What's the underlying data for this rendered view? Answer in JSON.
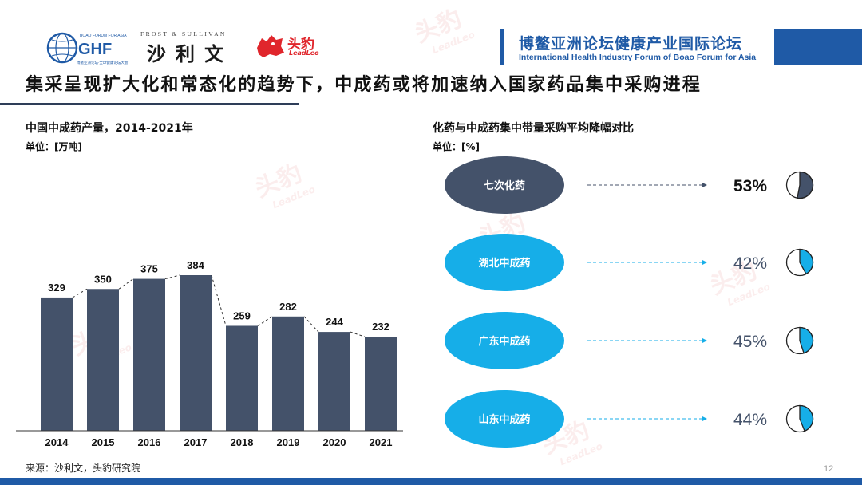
{
  "header": {
    "ghf_logo": {
      "top_text": "BOAO FORUM FOR ASIA",
      "mark_text": "GHF",
      "sub_text": "博鳌亚洲论坛·全球健康论坛大会"
    },
    "frost_logo": {
      "top_text": "FROST & SULLIVAN",
      "cn_text": "沙利文"
    },
    "leadleo_logo": {
      "cn_text": "头豹",
      "en_text": "LeadLeo"
    },
    "forum_title_cn": "博鳌亚洲论坛健康产业国际论坛",
    "forum_title_en": "International Health Industry Forum of Boao Forum for Asia"
  },
  "page_title": "集采呈现扩大化和常态化的趋势下，中成药或将加速纳入国家药品集中采购进程",
  "left_chart": {
    "title": "中国中成药产量，2014-2021年",
    "unit": "单位：[万吨]"
  },
  "right_chart": {
    "title": "化药与中成药集中带量采购平均降幅对比",
    "unit": "单位：[%]"
  },
  "chart_data": [
    {
      "type": "bar",
      "title": "中国中成药产量，2014-2021年",
      "unit": "万吨",
      "categories": [
        "2014",
        "2015",
        "2016",
        "2017",
        "2018",
        "2019",
        "2020",
        "2021"
      ],
      "values": [
        329,
        350,
        375,
        384,
        259,
        282,
        244,
        232
      ],
      "ylim": [
        0,
        400
      ],
      "bar_color": "#44526a",
      "connector": "dashed"
    },
    {
      "type": "pie",
      "title": "化药与中成药集中带量采购平均降幅对比",
      "unit": "%",
      "categories": [
        "七次化药",
        "湖北中成药",
        "广东中成药",
        "山东中成药"
      ],
      "values": [
        53,
        42,
        45,
        44
      ],
      "labels": [
        "53%",
        "42%",
        "45%",
        "44%"
      ],
      "colors": [
        "#44526a",
        "#16aee8",
        "#16aee8",
        "#16aee8"
      ]
    }
  ],
  "colors": {
    "bar": "#44526a",
    "accent_blue": "#16aee8",
    "brand_blue": "#1f5aa6",
    "leadleo_red": "#e0262c"
  },
  "footer": {
    "source": "来源：沙利文，头豹研究院",
    "page_number": "12"
  },
  "watermark": {
    "cn": "头豹",
    "en": "LeadLeo"
  }
}
